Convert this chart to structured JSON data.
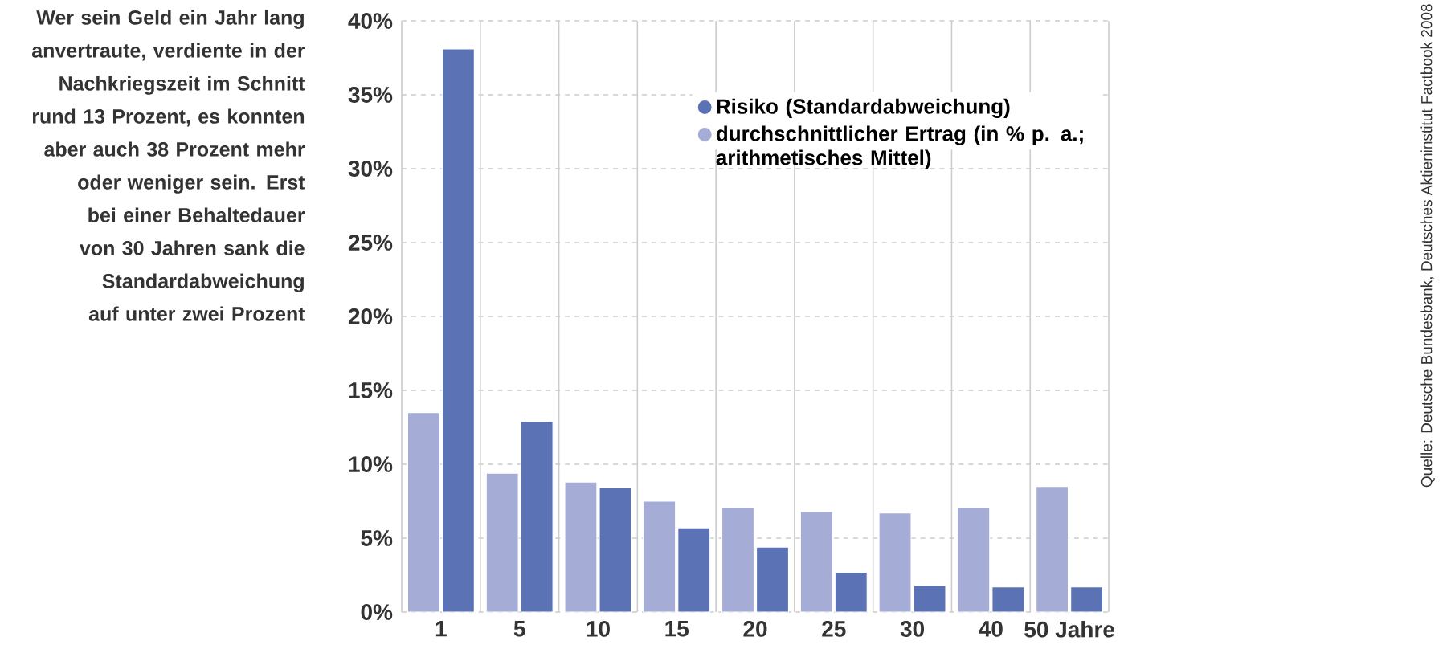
{
  "chart_data": {
    "type": "bar",
    "categories": [
      "1",
      "5",
      "10",
      "15",
      "20",
      "25",
      "30",
      "40",
      "50 Jahre"
    ],
    "series": [
      {
        "name": "durchschnittlicher Ertrag (in % p. a.; arithmetisches Mittel)",
        "color": "#a5acd6",
        "values": [
          13.5,
          9.4,
          8.8,
          7.5,
          7.1,
          6.8,
          6.7,
          7.1,
          8.5
        ]
      },
      {
        "name": "Risiko (Standardabweichung)",
        "color": "#5b72b5",
        "values": [
          38.1,
          12.9,
          8.4,
          5.7,
          4.4,
          2.7,
          1.8,
          1.7,
          1.7
        ]
      }
    ],
    "ylim": [
      0,
      40
    ],
    "yticks": [
      {
        "value": 0,
        "label": "0%"
      },
      {
        "value": 5,
        "label": "5%"
      },
      {
        "value": 10,
        "label": "10%"
      },
      {
        "value": 15,
        "label": "15%"
      },
      {
        "value": 20,
        "label": "20%"
      },
      {
        "value": 25,
        "label": "25%"
      },
      {
        "value": 30,
        "label": "30%"
      },
      {
        "value": 35,
        "label": "35%"
      },
      {
        "value": 40,
        "label": "40%"
      }
    ],
    "grid": true,
    "legend": "top right",
    "annotations": [
      "Wer sein Geld ein Jahr lang anvertraute, verdiente in der Nachkriegszeit im Schnitt rund 13 Prozent, es konnten aber auch 38 Prozent mehr oder weniger sein. Erst bei einer Behaltedauer von 30 Jahren sank die Standardabweichung auf unter zwei Prozent",
      "Quelle: Deutsche Bundesbank, Deutsches Aktieninstitut Factbook 2008"
    ]
  }
}
